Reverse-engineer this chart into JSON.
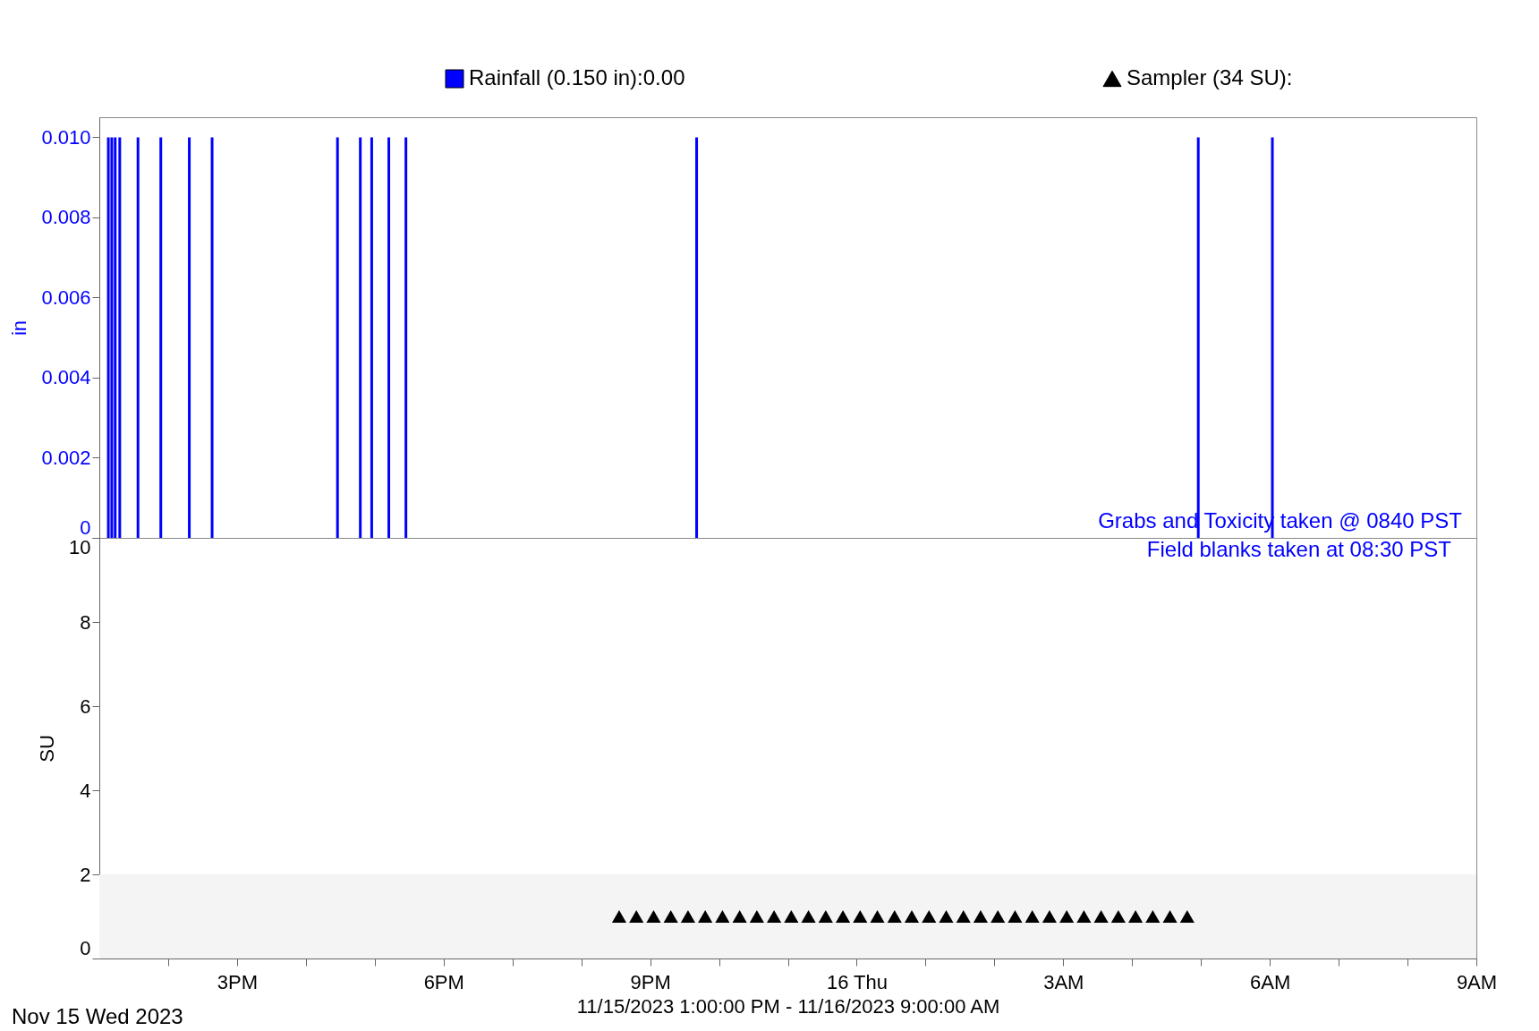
{
  "chart_data": [
    {
      "type": "bar",
      "ylabel": "in",
      "xlim": [
        "2023-11-15T13:00",
        "2023-11-16T09:00"
      ],
      "ylim": [
        0,
        0.0105
      ],
      "yticks": [
        0,
        {
          "value": 0.002,
          "label": "0.002"
        },
        {
          "value": 0.004,
          "label": "0.004"
        },
        {
          "value": 0.006,
          "label": "0.006"
        },
        {
          "value": 0.008,
          "label": "0.008"
        },
        {
          "value": 0.01,
          "label": "0.010"
        }
      ],
      "tick_labels": "y",
      "grid": false,
      "legend": "top",
      "series": [
        {
          "name": "Rainfall (0.150 in):0.00",
          "color": "#0000ff",
          "x": [
            "2023-11-15T13:04",
            "2023-11-15T13:07",
            "2023-11-15T13:10",
            "2023-11-15T13:14",
            "2023-11-15T13:30",
            "2023-11-15T13:50",
            "2023-11-15T14:15",
            "2023-11-15T14:35",
            "2023-11-15T16:25",
            "2023-11-15T16:45",
            "2023-11-15T16:55",
            "2023-11-15T17:10",
            "2023-11-15T17:25",
            "2023-11-15T21:40",
            "2023-11-16T05:00",
            "2023-11-16T06:05"
          ],
          "values": [
            0.01,
            0.01,
            0.01,
            0.01,
            0.01,
            0.01,
            0.01,
            0.01,
            0.01,
            0.01,
            0.01,
            0.01,
            0.01,
            0.01,
            0.01,
            0.01
          ]
        }
      ]
    },
    {
      "type": "scatter",
      "ylabel": "SU",
      "xlabel": "11/15/2023 1:00:00 PM - 11/16/2023 9:00:00 AM",
      "xlim": [
        "2023-11-15T13:00",
        "2023-11-16T09:00"
      ],
      "ylim": [
        0,
        10
      ],
      "yticks": [
        0,
        2,
        4,
        6,
        8,
        10
      ],
      "xticks": [
        {
          "value": "2023-11-15T14:00",
          "label": null
        },
        {
          "value": "2023-11-15T15:00",
          "label": "3PM"
        },
        {
          "value": "2023-11-15T16:00",
          "label": null
        },
        {
          "value": "2023-11-15T17:00",
          "label": null
        },
        {
          "value": "2023-11-15T18:00",
          "label": "6PM"
        },
        {
          "value": "2023-11-15T19:00",
          "label": null
        },
        {
          "value": "2023-11-15T20:00",
          "label": null
        },
        {
          "value": "2023-11-15T21:00",
          "label": "9PM"
        },
        {
          "value": "2023-11-15T22:00",
          "label": null
        },
        {
          "value": "2023-11-15T23:00",
          "label": null
        },
        {
          "value": "2023-11-16T00:00",
          "label": "16 Thu"
        },
        {
          "value": "2023-11-16T01:00",
          "label": null
        },
        {
          "value": "2023-11-16T02:00",
          "label": null
        },
        {
          "value": "2023-11-16T03:00",
          "label": "3AM"
        },
        {
          "value": "2023-11-16T04:00",
          "label": null
        },
        {
          "value": "2023-11-16T05:00",
          "label": null
        },
        {
          "value": "2023-11-16T06:00",
          "label": "6AM"
        },
        {
          "value": "2023-11-16T07:00",
          "label": null
        },
        {
          "value": "2023-11-16T08:00",
          "label": null
        },
        {
          "value": "2023-11-16T09:00",
          "label": "9AM"
        }
      ],
      "grid": false,
      "legend": "top",
      "marker": "triangle",
      "bands": [
        {
          "axis": "y",
          "from": 0,
          "to": 2,
          "label": null,
          "color": "#f4f4f4"
        }
      ],
      "series": [
        {
          "name": "Sampler (34 SU):",
          "color": "#000000",
          "x": [
            "2023-11-15T20:33",
            "2023-11-15T20:48",
            "2023-11-15T21:03",
            "2023-11-15T21:18",
            "2023-11-15T21:33",
            "2023-11-15T21:48",
            "2023-11-15T22:03",
            "2023-11-15T22:18",
            "2023-11-15T22:33",
            "2023-11-15T22:48",
            "2023-11-15T23:03",
            "2023-11-15T23:18",
            "2023-11-15T23:33",
            "2023-11-15T23:48",
            "2023-11-16T00:03",
            "2023-11-16T00:18",
            "2023-11-16T00:33",
            "2023-11-16T00:48",
            "2023-11-16T01:03",
            "2023-11-16T01:18",
            "2023-11-16T01:33",
            "2023-11-16T01:48",
            "2023-11-16T02:03",
            "2023-11-16T02:18",
            "2023-11-16T02:33",
            "2023-11-16T02:48",
            "2023-11-16T03:03",
            "2023-11-16T03:18",
            "2023-11-16T03:33",
            "2023-11-16T03:48",
            "2023-11-16T04:03",
            "2023-11-16T04:18",
            "2023-11-16T04:33",
            "2023-11-16T04:48"
          ],
          "values": [
            1,
            1,
            1,
            1,
            1,
            1,
            1,
            1,
            1,
            1,
            1,
            1,
            1,
            1,
            1,
            1,
            1,
            1,
            1,
            1,
            1,
            1,
            1,
            1,
            1,
            1,
            1,
            1,
            1,
            1,
            1,
            1,
            1,
            1
          ]
        }
      ],
      "annotations": [
        "Nov 15 Wed 2023",
        "Grabs and Toxicity taken @ 0840 PST",
        "Field blanks taken at 08:30 PST"
      ]
    }
  ]
}
